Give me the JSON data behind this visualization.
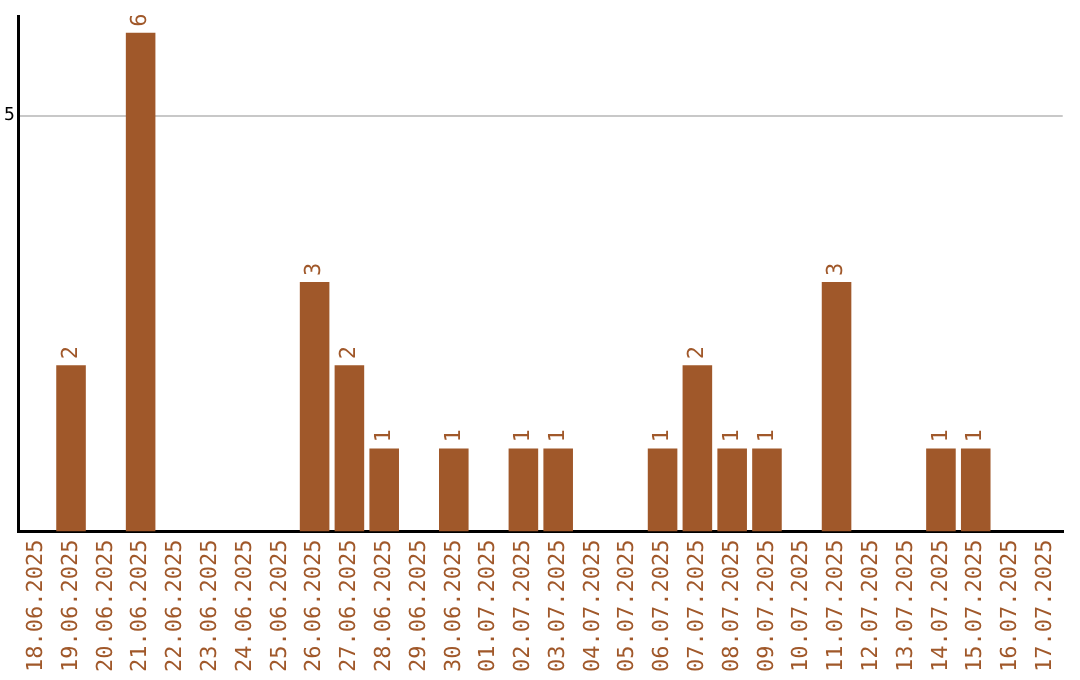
{
  "chart_data": {
    "type": "bar",
    "categories": [
      "18.06.2025",
      "19.06.2025",
      "20.06.2025",
      "21.06.2025",
      "22.06.2025",
      "23.06.2025",
      "24.06.2025",
      "25.06.2025",
      "26.06.2025",
      "27.06.2025",
      "28.06.2025",
      "29.06.2025",
      "30.06.2025",
      "01.07.2025",
      "02.07.2025",
      "03.07.2025",
      "04.07.2025",
      "05.07.2025",
      "06.07.2025",
      "07.07.2025",
      "08.07.2025",
      "09.07.2025",
      "10.07.2025",
      "11.07.2025",
      "12.07.2025",
      "13.07.2025",
      "14.07.2025",
      "15.07.2025",
      "16.07.2025",
      "17.07.2025"
    ],
    "values": [
      0,
      2,
      0,
      6,
      0,
      0,
      0,
      0,
      3,
      2,
      1,
      0,
      1,
      0,
      1,
      1,
      0,
      0,
      1,
      2,
      1,
      1,
      0,
      3,
      0,
      0,
      1,
      1,
      0,
      0
    ],
    "value_labels": [
      null,
      "2",
      null,
      "6",
      null,
      null,
      null,
      null,
      "3",
      "2",
      "1",
      null,
      "1",
      null,
      "1",
      "1",
      null,
      null,
      "1",
      "2",
      "1",
      "1",
      null,
      "3",
      null,
      null,
      "1",
      "1",
      null,
      null
    ],
    "color": "#a0582a",
    "ylim": [
      0,
      6.2
    ],
    "yticks": [
      5
    ],
    "grid": "y"
  }
}
